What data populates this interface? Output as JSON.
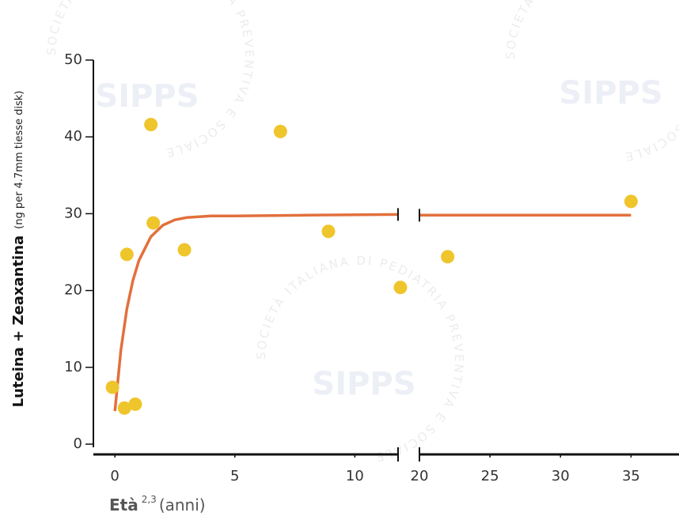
{
  "chart_data": {
    "type": "scatter",
    "ylabel": "Luteina + Zeaxantina",
    "ylabel_unit": "(ng per 4.7mm tiesse disk)",
    "xlabel": "Età",
    "xlabel_sup": "2,3",
    "xlabel_unit": "(anni)",
    "xlim": [
      -0.5,
      38.4
    ],
    "axis_break": [
      12,
      20
    ],
    "xticks": [
      0,
      5,
      10,
      20,
      25,
      30,
      35
    ],
    "ylim": [
      0,
      50
    ],
    "yticks": [
      0,
      10,
      20,
      30,
      40,
      50
    ],
    "points": {
      "color": "#efc52c",
      "x": [
        -0.1,
        0.4,
        0.85,
        0.5,
        1.5,
        1.6,
        2.9,
        6.9,
        8.9,
        11.9,
        22,
        35
      ],
      "values": [
        7.4,
        4.7,
        5.2,
        24.7,
        41.6,
        28.8,
        25.3,
        40.7,
        27.7,
        20.4,
        24.4,
        31.6
      ]
    },
    "curve": {
      "color": "#e2703c",
      "x": [
        0,
        0.25,
        0.5,
        0.75,
        1,
        1.5,
        2,
        2.5,
        3,
        4,
        5,
        8,
        11.8,
        null,
        20,
        35
      ],
      "values": [
        4.3,
        12.2,
        17.6,
        21.3,
        23.9,
        27,
        28.5,
        29.2,
        29.5,
        29.7,
        29.7,
        29.8,
        29.9,
        null,
        29.8,
        29.8
      ]
    },
    "watermark": {
      "logo": "SIPPS",
      "ring": "SOCIETÀ ITALIANA DI PEDIATRIA PREVENTIVA E SOCIALE"
    }
  }
}
